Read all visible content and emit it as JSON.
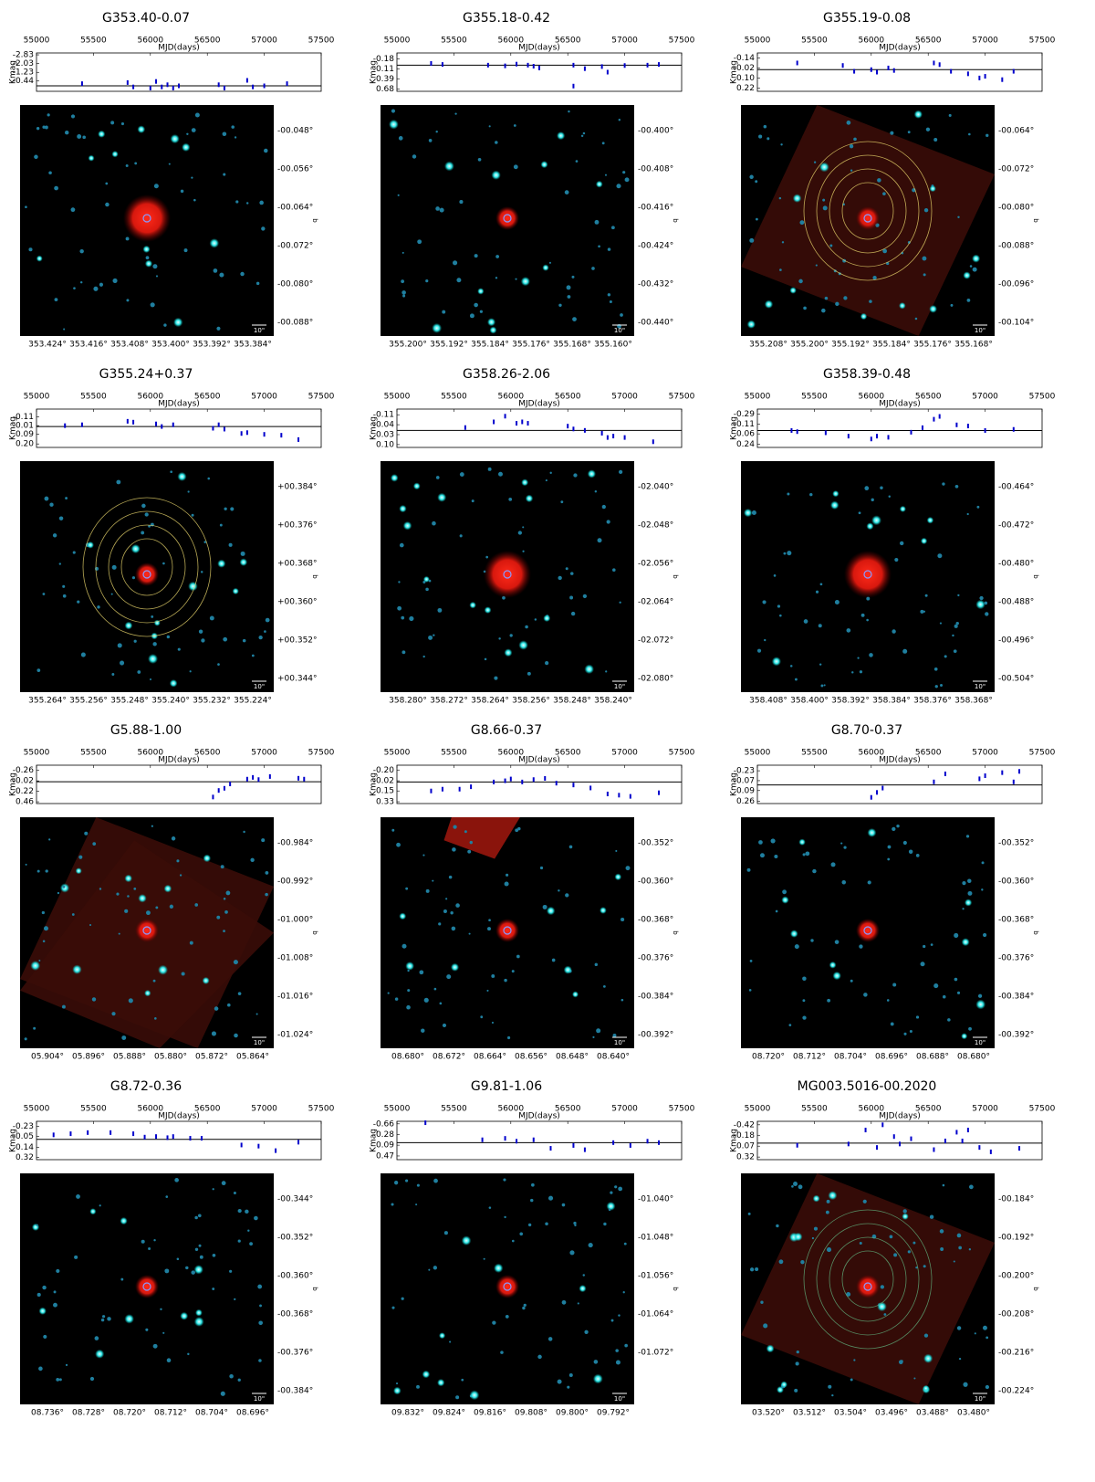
{
  "chart_data": [
    {
      "type": "scatter",
      "title": "G353.40-0.07",
      "xlabel": "MJD(days)",
      "ylabel": "Kmag",
      "color": "#0000cc",
      "xlim": [
        55000,
        57500
      ],
      "xticks": [
        55000,
        55500,
        56000,
        56500,
        57000,
        57500
      ],
      "ylim": [
        0.5,
        -3.0
      ],
      "yticks": [
        -2.83,
        -2.03,
        -1.23,
        -0.44
      ],
      "reference_line": 0,
      "x": [
        55400,
        55800,
        55850,
        56000,
        56050,
        56100,
        56150,
        56200,
        56250,
        56600,
        56650,
        56850,
        56900,
        57000,
        57200
      ],
      "values": [
        -0.2,
        -0.3,
        0.1,
        0.2,
        -0.4,
        0.1,
        -0.1,
        0.2,
        0.0,
        -0.1,
        0.2,
        -0.5,
        0.1,
        0.0,
        -0.2
      ],
      "image": {
        "xticks": [
          "353.424°",
          "353.416°",
          "353.408°",
          "353.400°",
          "353.392°",
          "353.384°"
        ],
        "yticks": [
          "-00.048°",
          "-00.056°",
          "-00.064°",
          "-00.072°",
          "-00.080°",
          "-00.088°"
        ],
        "ylabel": "b",
        "scale_label": "10\""
      }
    },
    {
      "type": "scatter",
      "title": "G355.18-0.42",
      "xlabel": "MJD(days)",
      "ylabel": "Kmag",
      "color": "#0000cc",
      "xlim": [
        55000,
        57500
      ],
      "xticks": [
        55000,
        55500,
        56000,
        56500,
        57000,
        57500
      ],
      "ylim": [
        0.75,
        -0.35
      ],
      "yticks": [
        -0.18,
        0.11,
        0.39,
        0.68
      ],
      "reference_line": 0,
      "x": [
        55300,
        55400,
        55800,
        55950,
        56050,
        56150,
        56200,
        56250,
        56550,
        56550,
        56650,
        56800,
        56850,
        57000,
        57200,
        57300
      ],
      "values": [
        -0.05,
        -0.02,
        0.0,
        0.02,
        -0.03,
        0.0,
        0.03,
        0.08,
        0.0,
        0.6,
        0.1,
        0.04,
        0.2,
        0.01,
        0.0,
        -0.02
      ],
      "image": {
        "xticks": [
          "355.200°",
          "355.192°",
          "355.184°",
          "355.176°",
          "355.168°",
          "355.160°"
        ],
        "yticks": [
          "-00.400°",
          "-00.408°",
          "-00.416°",
          "-00.424°",
          "-00.432°",
          "-00.440°"
        ],
        "ylabel": "b",
        "scale_label": "10\""
      }
    },
    {
      "type": "scatter",
      "title": "G355.19-0.08",
      "xlabel": "MJD(days)",
      "ylabel": "Kmag",
      "color": "#0000cc",
      "xlim": [
        55000,
        57500
      ],
      "xticks": [
        55000,
        55500,
        56000,
        56500,
        57000,
        57500
      ],
      "ylim": [
        0.26,
        -0.2
      ],
      "yticks": [
        -0.14,
        -0.02,
        {
          "value": 0.1,
          "label": "0.10"
        },
        0.22
      ],
      "reference_line": 0,
      "x": [
        55350,
        55750,
        55850,
        56000,
        56050,
        56150,
        56200,
        56550,
        56600,
        56700,
        56850,
        56950,
        57000,
        57150,
        57250
      ],
      "values": [
        -0.08,
        -0.05,
        0.02,
        0.0,
        0.03,
        -0.02,
        0.01,
        -0.08,
        -0.06,
        0.02,
        0.05,
        0.1,
        0.08,
        0.12,
        0.02
      ],
      "image": {
        "xticks": [
          "355.208°",
          "355.200°",
          "355.192°",
          "355.184°",
          "355.176°",
          "355.168°"
        ],
        "yticks": [
          "-00.064°",
          "-00.072°",
          "-00.080°",
          "-00.088°",
          "-00.096°",
          "-00.104°"
        ],
        "ylabel": "b",
        "scale_label": "10\""
      }
    },
    {
      "type": "scatter",
      "title": "G355.24+0.37",
      "xlabel": "MJD(days)",
      "ylabel": "Kmag",
      "color": "#0000cc",
      "xlim": [
        55000,
        57500
      ],
      "xticks": [
        55000,
        55500,
        56000,
        56500,
        57000,
        57500
      ],
      "ylim": [
        0.24,
        -0.2
      ],
      "yticks": [
        -0.11,
        -0.01,
        0.09,
        {
          "value": 0.2,
          "label": "0.20"
        }
      ],
      "reference_line": 0,
      "x": [
        55250,
        55400,
        55800,
        55850,
        56050,
        56100,
        56200,
        56550,
        56600,
        56650,
        56800,
        56850,
        57000,
        57150,
        57300
      ],
      "values": [
        -0.01,
        -0.02,
        -0.06,
        -0.05,
        -0.03,
        0.0,
        -0.02,
        0.02,
        -0.02,
        0.03,
        0.08,
        0.07,
        0.09,
        0.1,
        0.15
      ],
      "image": {
        "xticks": [
          "355.264°",
          "355.256°",
          "355.248°",
          "355.240°",
          "355.232°",
          "355.224°"
        ],
        "yticks": [
          "+00.384°",
          "+00.376°",
          "+00.368°",
          "+00.360°",
          "+00.352°",
          "+00.344°"
        ],
        "ylabel": "b",
        "scale_label": "10\""
      }
    },
    {
      "type": "scatter",
      "title": "G358.26-2.06",
      "xlabel": "MJD(days)",
      "ylabel": "Kmag",
      "color": "#0000cc",
      "xlim": [
        55000,
        57500
      ],
      "xticks": [
        55000,
        55500,
        56000,
        56500,
        57000,
        57500
      ],
      "ylim": [
        0.12,
        -0.15
      ],
      "yticks": [
        -0.11,
        -0.04,
        0.03,
        {
          "value": 0.1,
          "label": "0.10"
        }
      ],
      "reference_line": 0,
      "x": [
        55600,
        55850,
        55950,
        56050,
        56100,
        56150,
        56500,
        56550,
        56650,
        56800,
        56850,
        56900,
        57000,
        57250
      ],
      "values": [
        -0.02,
        -0.06,
        -0.1,
        -0.05,
        -0.06,
        -0.05,
        -0.03,
        -0.01,
        0.0,
        0.02,
        0.05,
        0.04,
        0.05,
        0.08
      ],
      "image": {
        "xticks": [
          "358.280°",
          "358.272°",
          "358.264°",
          "358.256°",
          "358.248°",
          "358.240°"
        ],
        "yticks": [
          "-02.040°",
          "-02.048°",
          "-02.056°",
          "-02.064°",
          "-02.072°",
          "-02.080°"
        ],
        "ylabel": "b",
        "scale_label": "10\""
      }
    },
    {
      "type": "scatter",
      "title": "G358.39-0.48",
      "xlabel": "MJD(days)",
      "ylabel": "Kmag",
      "color": "#0000cc",
      "xlim": [
        55000,
        57500
      ],
      "xticks": [
        55000,
        55500,
        56000,
        56500,
        57000,
        57500
      ],
      "ylim": [
        0.3,
        -0.38
      ],
      "yticks": [
        -0.29,
        -0.11,
        0.06,
        0.24
      ],
      "reference_line": 0,
      "x": [
        55300,
        55350,
        55600,
        55800,
        56000,
        56050,
        56150,
        56350,
        56450,
        56550,
        56600,
        56750,
        56850,
        57000,
        57250
      ],
      "values": [
        0.0,
        0.02,
        0.04,
        0.1,
        0.15,
        0.1,
        0.12,
        0.03,
        -0.05,
        -0.2,
        -0.25,
        -0.1,
        -0.08,
        0.0,
        -0.02
      ],
      "image": {
        "xticks": [
          "358.408°",
          "358.400°",
          "358.392°",
          "358.384°",
          "358.376°",
          "358.368°"
        ],
        "yticks": [
          "-00.464°",
          "-00.472°",
          "-00.480°",
          "-00.488°",
          "-00.496°",
          "-00.504°"
        ],
        "ylabel": "b",
        "scale_label": "10\""
      }
    },
    {
      "type": "scatter",
      "title": "G5.88-1.00",
      "xlabel": "MJD(days)",
      "ylabel": "Kmag",
      "color": "#0000cc",
      "xlim": [
        55000,
        57500
      ],
      "xticks": [
        55000,
        55500,
        56000,
        56500,
        57000,
        57500
      ],
      "ylim": [
        0.5,
        -0.38
      ],
      "yticks": [
        -0.26,
        -0.02,
        0.22,
        0.46
      ],
      "reference_line": 0,
      "x": [
        56550,
        56600,
        56650,
        56700,
        56850,
        56900,
        56950,
        57050,
        57300,
        57350
      ],
      "values": [
        0.35,
        0.2,
        0.15,
        0.05,
        -0.06,
        -0.1,
        -0.05,
        -0.12,
        -0.08,
        -0.06
      ],
      "image": {
        "xticks": [
          "05.904°",
          "05.896°",
          "05.888°",
          "05.880°",
          "05.872°",
          "05.864°"
        ],
        "yticks": [
          "-00.984°",
          "-00.992°",
          "-01.000°",
          "-01.008°",
          "-01.016°",
          "-01.024°"
        ],
        "ylabel": "b",
        "scale_label": "10\""
      }
    },
    {
      "type": "scatter",
      "title": "G8.66-0.37",
      "xlabel": "MJD(days)",
      "ylabel": "Kmag",
      "color": "#0000cc",
      "xlim": [
        55000,
        57500
      ],
      "xticks": [
        55000,
        55500,
        56000,
        56500,
        57000,
        57500
      ],
      "ylim": [
        0.36,
        -0.28
      ],
      "yticks": [
        {
          "value": -0.2,
          "label": "-0.20"
        },
        -0.02,
        0.15,
        0.33
      ],
      "reference_line": 0,
      "x": [
        55300,
        55400,
        55550,
        55650,
        55850,
        55950,
        56000,
        56100,
        56200,
        56300,
        56400,
        56550,
        56700,
        56850,
        56950,
        57050,
        57300
      ],
      "values": [
        0.15,
        0.12,
        0.12,
        0.08,
        0.0,
        -0.02,
        -0.05,
        0.0,
        -0.04,
        -0.06,
        0.02,
        0.05,
        0.1,
        0.2,
        0.22,
        0.24,
        0.18
      ],
      "image": {
        "xticks": [
          "08.680°",
          "08.672°",
          "08.664°",
          "08.656°",
          "08.648°",
          "08.640°"
        ],
        "yticks": [
          "-00.352°",
          "-00.360°",
          "-00.368°",
          "-00.376°",
          "-00.384°",
          "-00.392°"
        ],
        "ylabel": "b",
        "scale_label": "10\""
      }
    },
    {
      "type": "scatter",
      "title": "G8.70-0.37",
      "xlabel": "MJD(days)",
      "ylabel": "Kmag",
      "color": "#0000cc",
      "xlim": [
        55000,
        57500
      ],
      "xticks": [
        55000,
        55500,
        56000,
        56500,
        57000,
        57500
      ],
      "ylim": [
        0.3,
        -0.32
      ],
      "yticks": [
        -0.23,
        -0.07,
        0.09,
        0.26
      ],
      "reference_line": 0,
      "x": [
        56000,
        56050,
        56100,
        56550,
        56650,
        56950,
        57000,
        57150,
        57250,
        57300
      ],
      "values": [
        0.2,
        0.12,
        0.05,
        -0.05,
        -0.18,
        -0.1,
        -0.15,
        -0.2,
        -0.05,
        -0.22
      ],
      "image": {
        "xticks": [
          "08.720°",
          "08.712°",
          "08.704°",
          "08.696°",
          "08.688°",
          "08.680°"
        ],
        "yticks": [
          "-00.352°",
          "-00.360°",
          "-00.368°",
          "-00.376°",
          "-00.384°",
          "-00.392°"
        ],
        "ylabel": "b",
        "scale_label": "10\""
      }
    },
    {
      "type": "scatter",
      "title": "G8.72-0.36",
      "xlabel": "MJD(days)",
      "ylabel": "Kmag",
      "color": "#0000cc",
      "xlim": [
        55000,
        57500
      ],
      "xticks": [
        55000,
        55500,
        56000,
        56500,
        57000,
        57500
      ],
      "ylim": [
        0.36,
        -0.32
      ],
      "yticks": [
        -0.23,
        -0.05,
        0.14,
        0.32
      ],
      "reference_line": 0,
      "x": [
        55150,
        55300,
        55450,
        55650,
        55850,
        55950,
        56050,
        56150,
        56200,
        56350,
        56450,
        56800,
        56950,
        57100,
        57300
      ],
      "values": [
        -0.08,
        -0.1,
        -0.12,
        -0.12,
        -0.1,
        -0.04,
        -0.05,
        -0.03,
        -0.05,
        -0.02,
        -0.02,
        0.1,
        0.12,
        0.2,
        0.05
      ],
      "image": {
        "xticks": [
          "08.736°",
          "08.728°",
          "08.720°",
          "08.712°",
          "08.704°",
          "08.696°"
        ],
        "yticks": [
          "-00.344°",
          "-00.352°",
          "-00.360°",
          "-00.368°",
          "-00.376°",
          "-00.384°"
        ],
        "ylabel": "b",
        "scale_label": "10\""
      }
    },
    {
      "type": "scatter",
      "title": "G9.81-1.06",
      "xlabel": "MJD(days)",
      "ylabel": "Kmag",
      "color": "#0000cc",
      "xlim": [
        55000,
        57500
      ],
      "xticks": [
        55000,
        55500,
        56000,
        56500,
        57000,
        57500
      ],
      "ylim": [
        0.6,
        -0.75
      ],
      "yticks": [
        -0.66,
        -0.28,
        0.09,
        0.47
      ],
      "reference_line": 0,
      "x": [
        55250,
        55750,
        55950,
        56050,
        56200,
        56350,
        56550,
        56650,
        56900,
        57050,
        57200,
        57300
      ],
      "values": [
        -0.7,
        -0.1,
        -0.15,
        -0.05,
        -0.1,
        0.2,
        0.1,
        0.25,
        0.0,
        0.1,
        -0.05,
        0.0
      ],
      "image": {
        "xticks": [
          "09.832°",
          "09.824°",
          "09.816°",
          "09.808°",
          "09.800°",
          "09.792°"
        ],
        "yticks": [
          "-01.040°",
          "-01.048°",
          "-01.056°",
          "-01.064°",
          "-01.072°"
        ],
        "ylabel": "b",
        "scale_label": "10\""
      }
    },
    {
      "type": "scatter",
      "title": "MG003.5016-00.2020",
      "xlabel": "MJD(days)",
      "ylabel": "Kmag",
      "color": "#0000cc",
      "xlim": [
        55000,
        57500
      ],
      "xticks": [
        55000,
        55500,
        56000,
        56500,
        57000,
        57500
      ],
      "ylim": [
        0.38,
        -0.5
      ],
      "yticks": [
        -0.42,
        -0.18,
        0.07,
        0.32
      ],
      "reference_line": 0,
      "x": [
        55350,
        55800,
        55950,
        56050,
        56100,
        56200,
        56250,
        56350,
        56550,
        56650,
        56750,
        56800,
        56850,
        56950,
        57050,
        57300
      ],
      "values": [
        0.05,
        0.02,
        -0.3,
        0.1,
        -0.42,
        -0.15,
        0.02,
        -0.1,
        0.15,
        -0.05,
        -0.25,
        -0.05,
        -0.3,
        0.1,
        0.2,
        0.12
      ],
      "image": {
        "xticks": [
          "03.520°",
          "03.512°",
          "03.504°",
          "03.496°",
          "03.488°",
          "03.480°"
        ],
        "yticks": [
          "-00.184°",
          "-00.192°",
          "-00.200°",
          "-00.208°",
          "-00.216°",
          "-00.224°"
        ],
        "ylabel": "b",
        "scale_label": "10\""
      }
    }
  ]
}
